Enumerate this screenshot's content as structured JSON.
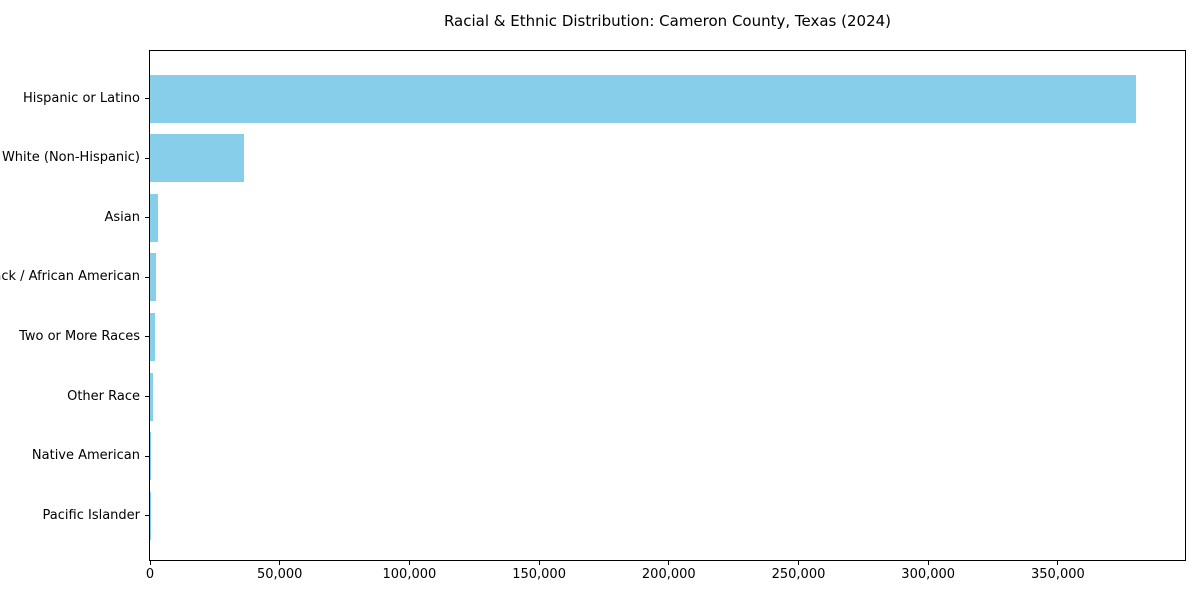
{
  "chart_data": {
    "type": "bar",
    "orientation": "horizontal",
    "title": "Racial & Ethnic Distribution: Cameron County, Texas (2024)",
    "categories": [
      "Hispanic or Latino",
      "White (Non-Hispanic)",
      "Asian",
      "Black / African American",
      "Two or More Races",
      "Other Race",
      "Native American",
      "Pacific Islander"
    ],
    "values": [
      380000,
      36400,
      3100,
      2200,
      1900,
      1000,
      150,
      40
    ],
    "bar_color": "#87CEEB",
    "xlabel": "",
    "ylabel": "",
    "xlim": [
      0,
      399000
    ],
    "x_ticks": [
      0,
      50000,
      100000,
      150000,
      200000,
      250000,
      300000,
      350000
    ],
    "x_tick_labels": [
      "0",
      "50,000",
      "100,000",
      "150,000",
      "200,000",
      "250,000",
      "300,000",
      "350,000"
    ],
    "grid": false,
    "legend_position": "none",
    "axis_color": "#000000",
    "background_color": "#ffffff"
  }
}
